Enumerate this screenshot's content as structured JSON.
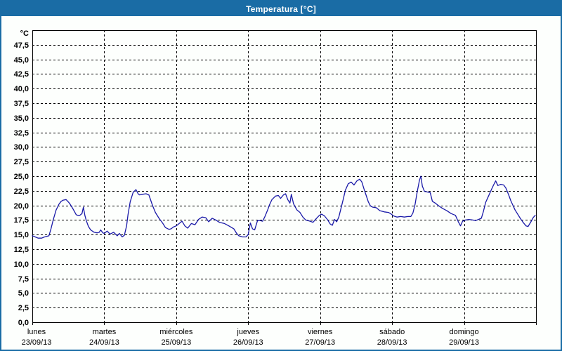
{
  "window": {
    "title": "Temperatura [°C]",
    "titlebar_color": "#1a6ca5",
    "border_color": "#1a6ca5",
    "background": "#fdfffd"
  },
  "chart_data": {
    "type": "line",
    "title": "Temperatura [°C]",
    "y_unit": "°C",
    "ylim": [
      0,
      50
    ],
    "ytick_step": 2.5,
    "ytick_labels": [
      "0,0",
      "2,5",
      "5,0",
      "7,5",
      "10,0",
      "12,5",
      "15,0",
      "17,5",
      "20,0",
      "22,5",
      "25,0",
      "27,5",
      "30,0",
      "32,5",
      "35,0",
      "37,5",
      "40,0",
      "42,5",
      "45,0",
      "47,5"
    ],
    "grid": "dashed-black",
    "legend_position": "none",
    "line_color": "#1a1aa8",
    "categories": [
      {
        "name": "lunes",
        "date": "23/09/13"
      },
      {
        "name": "martes",
        "date": "24/09/13"
      },
      {
        "name": "miércoles",
        "date": "25/09/13"
      },
      {
        "name": "jueves",
        "date": "26/09/13"
      },
      {
        "name": "viernes",
        "date": "27/09/13"
      },
      {
        "name": "sábado",
        "date": "28/09/13"
      },
      {
        "name": "domingo",
        "date": "29/09/13"
      }
    ],
    "xlim_days": [
      0,
      7
    ],
    "series": [
      {
        "name": "Temperatura",
        "points": [
          [
            0.0,
            14.8
          ],
          [
            0.04,
            14.6
          ],
          [
            0.08,
            14.4
          ],
          [
            0.13,
            14.4
          ],
          [
            0.17,
            14.6
          ],
          [
            0.2,
            14.7
          ],
          [
            0.23,
            14.8
          ],
          [
            0.26,
            16.0
          ],
          [
            0.29,
            17.5
          ],
          [
            0.33,
            19.2
          ],
          [
            0.37,
            20.2
          ],
          [
            0.4,
            20.7
          ],
          [
            0.43,
            20.9
          ],
          [
            0.47,
            21.0
          ],
          [
            0.5,
            20.6
          ],
          [
            0.52,
            20.3
          ],
          [
            0.57,
            19.3
          ],
          [
            0.61,
            18.4
          ],
          [
            0.63,
            18.3
          ],
          [
            0.66,
            18.3
          ],
          [
            0.69,
            18.6
          ],
          [
            0.71,
            19.7
          ],
          [
            0.73,
            18.3
          ],
          [
            0.75,
            17.4
          ],
          [
            0.78,
            16.4
          ],
          [
            0.81,
            15.8
          ],
          [
            0.86,
            15.4
          ],
          [
            0.9,
            15.3
          ],
          [
            0.93,
            15.4
          ],
          [
            0.95,
            15.8
          ],
          [
            0.98,
            15.3
          ],
          [
            1.0,
            15.2
          ],
          [
            1.04,
            15.6
          ],
          [
            1.08,
            15.1
          ],
          [
            1.13,
            15.4
          ],
          [
            1.18,
            14.8
          ],
          [
            1.21,
            15.2
          ],
          [
            1.25,
            14.6
          ],
          [
            1.28,
            14.9
          ],
          [
            1.31,
            16.5
          ],
          [
            1.33,
            18.4
          ],
          [
            1.36,
            20.6
          ],
          [
            1.4,
            22.2
          ],
          [
            1.44,
            22.7
          ],
          [
            1.47,
            22.0
          ],
          [
            1.49,
            21.8
          ],
          [
            1.53,
            21.9
          ],
          [
            1.58,
            22.0
          ],
          [
            1.62,
            21.8
          ],
          [
            1.67,
            20.0
          ],
          [
            1.71,
            18.8
          ],
          [
            1.76,
            17.8
          ],
          [
            1.81,
            17.0
          ],
          [
            1.85,
            16.2
          ],
          [
            1.9,
            15.9
          ],
          [
            1.93,
            16.0
          ],
          [
            1.96,
            16.3
          ],
          [
            2.0,
            16.5
          ],
          [
            2.04,
            16.9
          ],
          [
            2.08,
            17.3
          ],
          [
            2.12,
            16.5
          ],
          [
            2.16,
            16.1
          ],
          [
            2.21,
            16.9
          ],
          [
            2.26,
            16.7
          ],
          [
            2.31,
            17.6
          ],
          [
            2.36,
            18.0
          ],
          [
            2.41,
            17.9
          ],
          [
            2.45,
            17.2
          ],
          [
            2.5,
            17.8
          ],
          [
            2.55,
            17.5
          ],
          [
            2.6,
            17.1
          ],
          [
            2.67,
            16.9
          ],
          [
            2.73,
            16.5
          ],
          [
            2.8,
            16.0
          ],
          [
            2.84,
            15.2
          ],
          [
            2.87,
            14.8
          ],
          [
            2.92,
            14.6
          ],
          [
            2.97,
            14.6
          ],
          [
            3.0,
            15.0
          ],
          [
            3.03,
            17.0
          ],
          [
            3.06,
            16.0
          ],
          [
            3.09,
            15.8
          ],
          [
            3.13,
            17.4
          ],
          [
            3.17,
            17.4
          ],
          [
            3.2,
            17.3
          ],
          [
            3.23,
            18.0
          ],
          [
            3.27,
            19.2
          ],
          [
            3.3,
            20.2
          ],
          [
            3.33,
            21.0
          ],
          [
            3.38,
            21.6
          ],
          [
            3.42,
            21.7
          ],
          [
            3.45,
            21.2
          ],
          [
            3.49,
            21.8
          ],
          [
            3.52,
            22.0
          ],
          [
            3.55,
            21.0
          ],
          [
            3.58,
            20.4
          ],
          [
            3.6,
            21.9
          ],
          [
            3.63,
            20.3
          ],
          [
            3.65,
            19.8
          ],
          [
            3.68,
            19.2
          ],
          [
            3.72,
            18.8
          ],
          [
            3.76,
            18.0
          ],
          [
            3.8,
            17.5
          ],
          [
            3.86,
            17.3
          ],
          [
            3.9,
            17.1
          ],
          [
            3.95,
            17.8
          ],
          [
            3.99,
            18.3
          ],
          [
            4.02,
            18.5
          ],
          [
            4.06,
            18.2
          ],
          [
            4.1,
            17.6
          ],
          [
            4.14,
            16.8
          ],
          [
            4.17,
            16.6
          ],
          [
            4.2,
            17.6
          ],
          [
            4.23,
            17.2
          ],
          [
            4.26,
            18.0
          ],
          [
            4.29,
            19.5
          ],
          [
            4.32,
            21.0
          ],
          [
            4.35,
            22.6
          ],
          [
            4.39,
            23.7
          ],
          [
            4.43,
            24.0
          ],
          [
            4.47,
            23.5
          ],
          [
            4.51,
            24.2
          ],
          [
            4.55,
            24.5
          ],
          [
            4.58,
            24.0
          ],
          [
            4.61,
            22.8
          ],
          [
            4.64,
            21.7
          ],
          [
            4.67,
            20.6
          ],
          [
            4.7,
            19.9
          ],
          [
            4.73,
            19.7
          ],
          [
            4.78,
            19.6
          ],
          [
            4.83,
            19.1
          ],
          [
            4.89,
            18.9
          ],
          [
            4.95,
            18.8
          ],
          [
            4.99,
            18.5
          ],
          [
            5.02,
            18.2
          ],
          [
            5.07,
            18.0
          ],
          [
            5.12,
            18.1
          ],
          [
            5.17,
            18.0
          ],
          [
            5.22,
            18.1
          ],
          [
            5.26,
            18.1
          ],
          [
            5.29,
            18.7
          ],
          [
            5.32,
            20.2
          ],
          [
            5.35,
            22.4
          ],
          [
            5.38,
            24.3
          ],
          [
            5.4,
            25.0
          ],
          [
            5.42,
            23.3
          ],
          [
            5.45,
            22.4
          ],
          [
            5.49,
            22.3
          ],
          [
            5.53,
            22.2
          ],
          [
            5.56,
            20.7
          ],
          [
            5.6,
            20.4
          ],
          [
            5.64,
            20.0
          ],
          [
            5.7,
            19.5
          ],
          [
            5.76,
            19.1
          ],
          [
            5.82,
            18.6
          ],
          [
            5.88,
            18.3
          ],
          [
            5.92,
            17.2
          ],
          [
            5.95,
            16.5
          ],
          [
            5.98,
            17.3
          ],
          [
            6.02,
            17.5
          ],
          [
            6.07,
            17.6
          ],
          [
            6.12,
            17.5
          ],
          [
            6.16,
            17.4
          ],
          [
            6.2,
            17.6
          ],
          [
            6.24,
            17.8
          ],
          [
            6.27,
            19.0
          ],
          [
            6.3,
            20.5
          ],
          [
            6.34,
            21.6
          ],
          [
            6.38,
            22.7
          ],
          [
            6.41,
            23.5
          ],
          [
            6.44,
            24.2
          ],
          [
            6.47,
            23.4
          ],
          [
            6.51,
            23.6
          ],
          [
            6.55,
            23.5
          ],
          [
            6.58,
            23.0
          ],
          [
            6.62,
            21.8
          ],
          [
            6.65,
            20.8
          ],
          [
            6.68,
            20.0
          ],
          [
            6.71,
            19.2
          ],
          [
            6.74,
            18.6
          ],
          [
            6.78,
            17.8
          ],
          [
            6.82,
            17.1
          ],
          [
            6.86,
            16.5
          ],
          [
            6.89,
            16.4
          ],
          [
            6.93,
            17.2
          ],
          [
            6.96,
            17.9
          ],
          [
            6.99,
            18.3
          ]
        ]
      }
    ]
  }
}
